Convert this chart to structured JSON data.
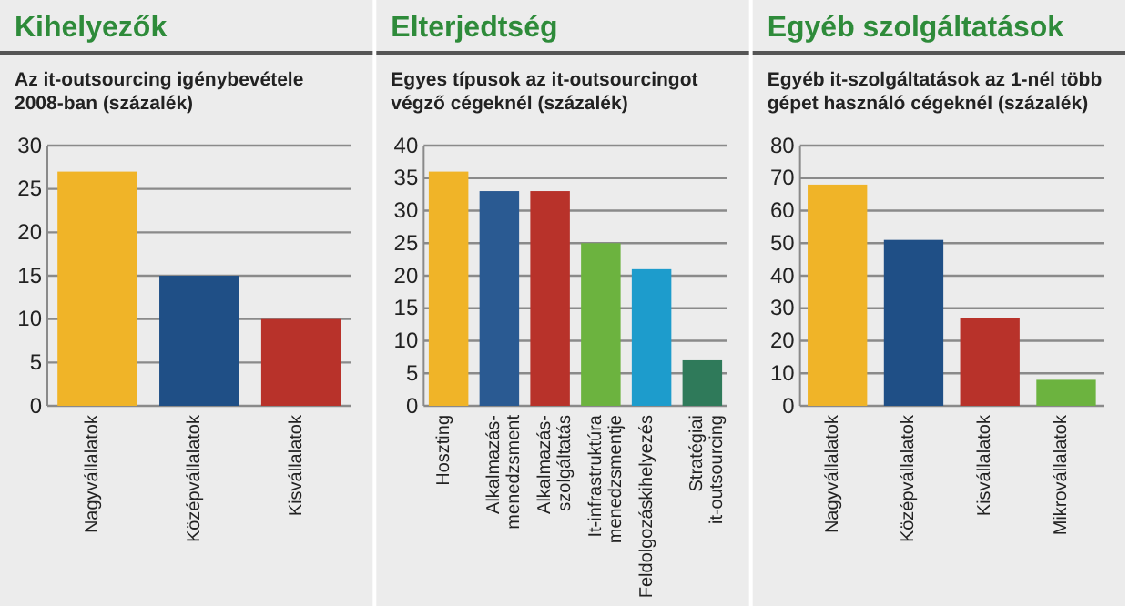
{
  "chart_data": [
    {
      "type": "bar",
      "title": "Kihelyezők",
      "subtitle": "Az it-outsourcing igénybevétele 2008-ban (százalék)",
      "categories": [
        "Nagyvállalatok",
        "Középvállalatok",
        "Kisvállalatok"
      ],
      "values": [
        27,
        15,
        10
      ],
      "colors": [
        "#f0b428",
        "#1f4f86",
        "#b8322a"
      ],
      "ylim": [
        0,
        30
      ],
      "yticks": [
        0,
        5,
        10,
        15,
        20,
        25,
        30
      ],
      "grid": "y"
    },
    {
      "type": "bar",
      "title": "Elterjedtség",
      "subtitle": "Egyes típusok az it-outsourcingot végző cégeknél (százalék)",
      "categories": [
        "Hoszting",
        "Alkalmazás-menedzsment",
        "Alkalmazás-szolgáltatás",
        "It-infrastruktúra menedzsmentje",
        "Feldolgozáskihelyezés",
        "Stratégiai it-outsourcing"
      ],
      "values": [
        36,
        33,
        33,
        25,
        21,
        7
      ],
      "colors": [
        "#f0b428",
        "#2a5a92",
        "#b8322a",
        "#6cb33f",
        "#1d9ccc",
        "#2f7a5a"
      ],
      "ylim": [
        0,
        40
      ],
      "yticks": [
        0,
        5,
        10,
        15,
        20,
        25,
        30,
        35,
        40
      ],
      "grid": "y"
    },
    {
      "type": "bar",
      "title": "Egyéb szolgáltatások",
      "subtitle": "Egyéb it-szolgáltatások az 1-nél több gépet használó cégeknél (százalék)",
      "categories": [
        "Nagyvállalatok",
        "Középvállalatok",
        "Kisvállalatok",
        "Mikrovállalatok"
      ],
      "values": [
        68,
        51,
        27,
        8
      ],
      "colors": [
        "#f0b428",
        "#1f4f86",
        "#b8322a",
        "#6cb33f"
      ],
      "ylim": [
        0,
        80
      ],
      "yticks": [
        0,
        10,
        20,
        30,
        40,
        50,
        60,
        70,
        80
      ],
      "grid": "y"
    }
  ]
}
